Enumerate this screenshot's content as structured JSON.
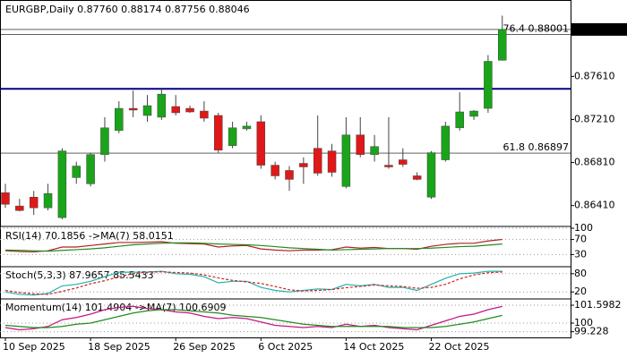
{
  "chart_data": [
    {
      "type": "candlestick",
      "title": "EURGBP,Daily  0.87760 0.88174 0.87756 0.88046",
      "categories": [
        "10 Sep 2025",
        null,
        null,
        null,
        null,
        null,
        "18 Sep 2025",
        null,
        null,
        null,
        null,
        null,
        "26 Sep 2025",
        null,
        null,
        null,
        null,
        null,
        "6 Oct 2025",
        null,
        null,
        null,
        null,
        null,
        "14 Oct 2025",
        null,
        null,
        null,
        null,
        null,
        "22 Oct 2025",
        null,
        null,
        null,
        null,
        null
      ],
      "open": [
        0.86529,
        0.86406,
        0.86488,
        0.86389,
        0.86298,
        0.8667,
        0.86612,
        0.86884,
        0.87107,
        0.87313,
        0.87247,
        0.87231,
        0.8733,
        0.87313,
        0.87288,
        0.87247,
        0.86967,
        0.87123,
        0.87189,
        0.86785,
        0.86736,
        0.86802,
        0.86942,
        0.86917,
        0.86587,
        0.87066,
        0.86884,
        0.86785,
        0.86835,
        0.86686,
        0.86488,
        0.86835,
        0.87132,
        0.87239,
        0.87313,
        0.8776
      ],
      "high": [
        0.86612,
        0.86472,
        0.86546,
        0.86612,
        0.86942,
        0.86818,
        0.86901,
        0.87231,
        0.87379,
        0.87478,
        0.87437,
        0.87494,
        0.87437,
        0.87338,
        0.87379,
        0.87272,
        0.87189,
        0.87189,
        0.87247,
        0.86818,
        0.86777,
        0.86859,
        0.87247,
        0.86983,
        0.87231,
        0.87231,
        0.87066,
        0.87231,
        0.86942,
        0.86719,
        0.86917,
        0.87189,
        0.87462,
        0.87297,
        0.87808,
        0.88174
      ],
      "low": [
        0.86389,
        0.86356,
        0.86323,
        0.86364,
        0.86282,
        0.86612,
        0.86587,
        0.86818,
        0.87082,
        0.87231,
        0.87189,
        0.87206,
        0.87247,
        0.87272,
        0.87189,
        0.86901,
        0.86942,
        0.87107,
        0.86752,
        0.86653,
        0.86546,
        0.86612,
        0.86686,
        0.86678,
        0.8657,
        0.86859,
        0.86818,
        0.86752,
        0.86769,
        0.86645,
        0.86472,
        0.86818,
        0.87107,
        0.87206,
        0.87272,
        0.87756
      ],
      "close": [
        0.86422,
        0.86364,
        0.86389,
        0.86521,
        0.86917,
        0.86777,
        0.86884,
        0.87132,
        0.87313,
        0.87297,
        0.87338,
        0.87445,
        0.87272,
        0.8728,
        0.87222,
        0.86925,
        0.87132,
        0.87148,
        0.86785,
        0.86686,
        0.86653,
        0.86769,
        0.86711,
        0.86719,
        0.87066,
        0.86884,
        0.86958,
        0.86769,
        0.86793,
        0.86653,
        0.86901,
        0.87148,
        0.8728,
        0.87288,
        0.8775,
        0.88046
      ],
      "up_color": "#19a419",
      "down_color": "#e01818",
      "ylim": [
        0.86216,
        0.88303
      ],
      "yticks": [
        0.88046,
        {
          "value": 0.8761,
          "label": "0.87610"
        },
        {
          "value": 0.8721,
          "label": "0.87210"
        },
        {
          "value": 0.8681,
          "label": "0.86810"
        },
        {
          "value": 0.8641,
          "label": "0.86410"
        }
      ],
      "current_price": 0.88046,
      "hline": {
        "value": 0.87494,
        "color": "#000080"
      },
      "annotations": [
        {
          "text": "76.4 0.88001",
          "value": 0.88001
        },
        {
          "text": "61.8 0.86897",
          "value": 0.86897
        }
      ]
    },
    {
      "type": "line",
      "title": "RSI(14) 70.1856 ->MA(7) 58.0151",
      "ylim": [
        0,
        100
      ],
      "yticks": [
        100,
        70,
        30
      ],
      "series": [
        {
          "color": "#b22222",
          "values": [
            40,
            38,
            37,
            40,
            50,
            50,
            54,
            58,
            62,
            62,
            63,
            64,
            60,
            59,
            58,
            50,
            53,
            54,
            45,
            42,
            40,
            42,
            42,
            43,
            50,
            47,
            49,
            46,
            46,
            44,
            52,
            57,
            60,
            60,
            66,
            70.1856
          ]
        },
        {
          "color": "#228b22",
          "values": [
            42,
            41,
            40,
            39,
            41,
            43,
            45,
            48,
            52,
            56,
            58,
            60,
            61,
            61,
            60,
            58,
            57,
            56,
            54,
            51,
            48,
            46,
            44,
            42,
            43,
            44,
            45,
            46,
            46,
            46,
            47,
            49,
            51,
            52,
            55,
            58.0151
          ]
        }
      ]
    },
    {
      "type": "line",
      "title": "Stoch(5,3,3) 87.9657 85.5433",
      "ylim": [
        0,
        100
      ],
      "yticks": [
        80,
        20
      ],
      "series": [
        {
          "color": "#20b2aa",
          "values": [
            20,
            12,
            10,
            15,
            40,
            45,
            55,
            70,
            85,
            85,
            85,
            88,
            80,
            78,
            70,
            50,
            55,
            55,
            35,
            25,
            20,
            25,
            30,
            28,
            45,
            40,
            45,
            35,
            35,
            25,
            45,
            65,
            80,
            82,
            88,
            87.9657
          ]
        },
        {
          "color": "#d02020",
          "dashed": true,
          "values": [
            25,
            18,
            14,
            12,
            22,
            33,
            47,
            57,
            70,
            80,
            85,
            86,
            84,
            82,
            76,
            66,
            58,
            53,
            48,
            38,
            27,
            23,
            25,
            28,
            34,
            38,
            43,
            40,
            38,
            32,
            35,
            45,
            63,
            76,
            83,
            85.5433
          ]
        }
      ]
    },
    {
      "type": "line",
      "title": "Momentum(14) 101.4904 ->MA(7) 100.6909",
      "ylim": [
        98.72,
        102.08
      ],
      "yticks": [
        101.5982,
        100,
        99.228
      ],
      "series": [
        {
          "color": "#c71585",
          "values": [
            99.6,
            99.4,
            99.5,
            99.7,
            100.3,
            100.5,
            100.8,
            101.2,
            101.4,
            101.5,
            101.3,
            101.2,
            101.0,
            100.9,
            100.6,
            100.4,
            100.5,
            100.4,
            100.1,
            99.8,
            99.7,
            99.6,
            99.7,
            99.6,
            99.9,
            99.7,
            99.8,
            99.6,
            99.5,
            99.4,
            99.8,
            100.2,
            100.6,
            100.8,
            101.2,
            101.4904
          ]
        },
        {
          "color": "#228b22",
          "values": [
            99.8,
            99.7,
            99.6,
            99.6,
            99.7,
            99.9,
            100.0,
            100.3,
            100.6,
            100.9,
            101.1,
            101.2,
            101.2,
            101.1,
            101.0,
            100.9,
            100.7,
            100.6,
            100.5,
            100.3,
            100.1,
            99.9,
            99.8,
            99.7,
            99.7,
            99.7,
            99.7,
            99.7,
            99.6,
            99.6,
            99.6,
            99.7,
            99.9,
            100.1,
            100.4,
            100.6909
          ]
        }
      ]
    }
  ]
}
